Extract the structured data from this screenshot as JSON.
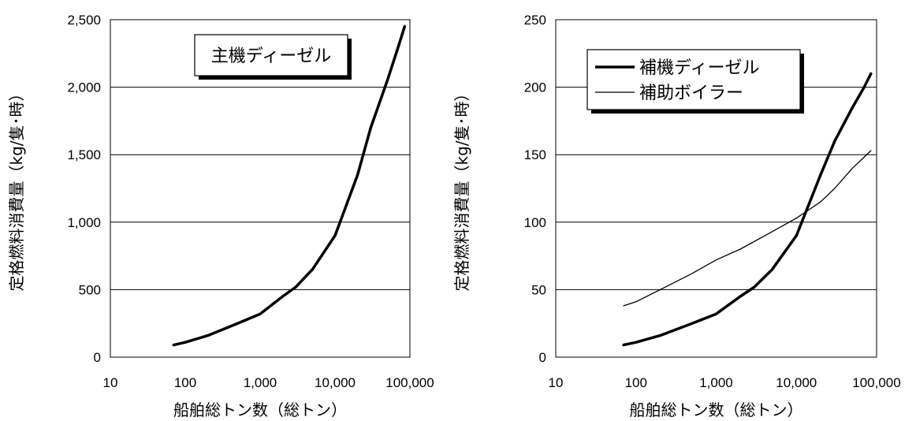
{
  "chart_data": [
    {
      "type": "line",
      "x_scale": "log",
      "xlabel": "船舶総トン数（総トン）",
      "ylabel": "定格燃料消費量（kg/隻･時）",
      "xlim": [
        10,
        100000
      ],
      "ylim": [
        0,
        2500
      ],
      "xticks": [
        "10",
        "100",
        "1,000",
        "10,000",
        "100,000"
      ],
      "yticks": [
        "0",
        "500",
        "1,000",
        "1,500",
        "2,000",
        "2,500"
      ],
      "grid": "horizontal",
      "legend_position": "top-center",
      "series": [
        {
          "name": "主機ディーゼル",
          "style": "thick",
          "x": [
            70,
            100,
            200,
            500,
            1000,
            2000,
            3000,
            5000,
            10000,
            20000,
            30000,
            50000,
            70000,
            85000
          ],
          "y": [
            90,
            110,
            160,
            250,
            320,
            450,
            520,
            650,
            900,
            1350,
            1700,
            2050,
            2300,
            2450
          ]
        }
      ]
    },
    {
      "type": "line",
      "x_scale": "log",
      "xlabel": "船舶総トン数（総トン）",
      "ylabel": "定格燃料消費量（kg/隻･時）",
      "xlim": [
        10,
        100000
      ],
      "ylim": [
        0,
        250
      ],
      "xticks": [
        "10",
        "100",
        "1,000",
        "10,000",
        "100,000"
      ],
      "yticks": [
        "0",
        "50",
        "100",
        "150",
        "200",
        "250"
      ],
      "grid": "horizontal",
      "legend_position": "top-left",
      "series": [
        {
          "name": "補機ディーゼル",
          "style": "thick",
          "x": [
            70,
            100,
            200,
            500,
            1000,
            2000,
            3000,
            5000,
            10000,
            20000,
            30000,
            50000,
            70000,
            85000
          ],
          "y": [
            9,
            11,
            16,
            25,
            32,
            45,
            52,
            65,
            90,
            135,
            160,
            185,
            200,
            210
          ]
        },
        {
          "name": "補助ボイラー",
          "style": "thin",
          "x": [
            70,
            100,
            200,
            500,
            1000,
            2000,
            5000,
            10000,
            20000,
            30000,
            50000,
            85000
          ],
          "y": [
            38,
            41,
            50,
            62,
            72,
            80,
            93,
            103,
            115,
            125,
            140,
            153
          ]
        }
      ]
    }
  ]
}
